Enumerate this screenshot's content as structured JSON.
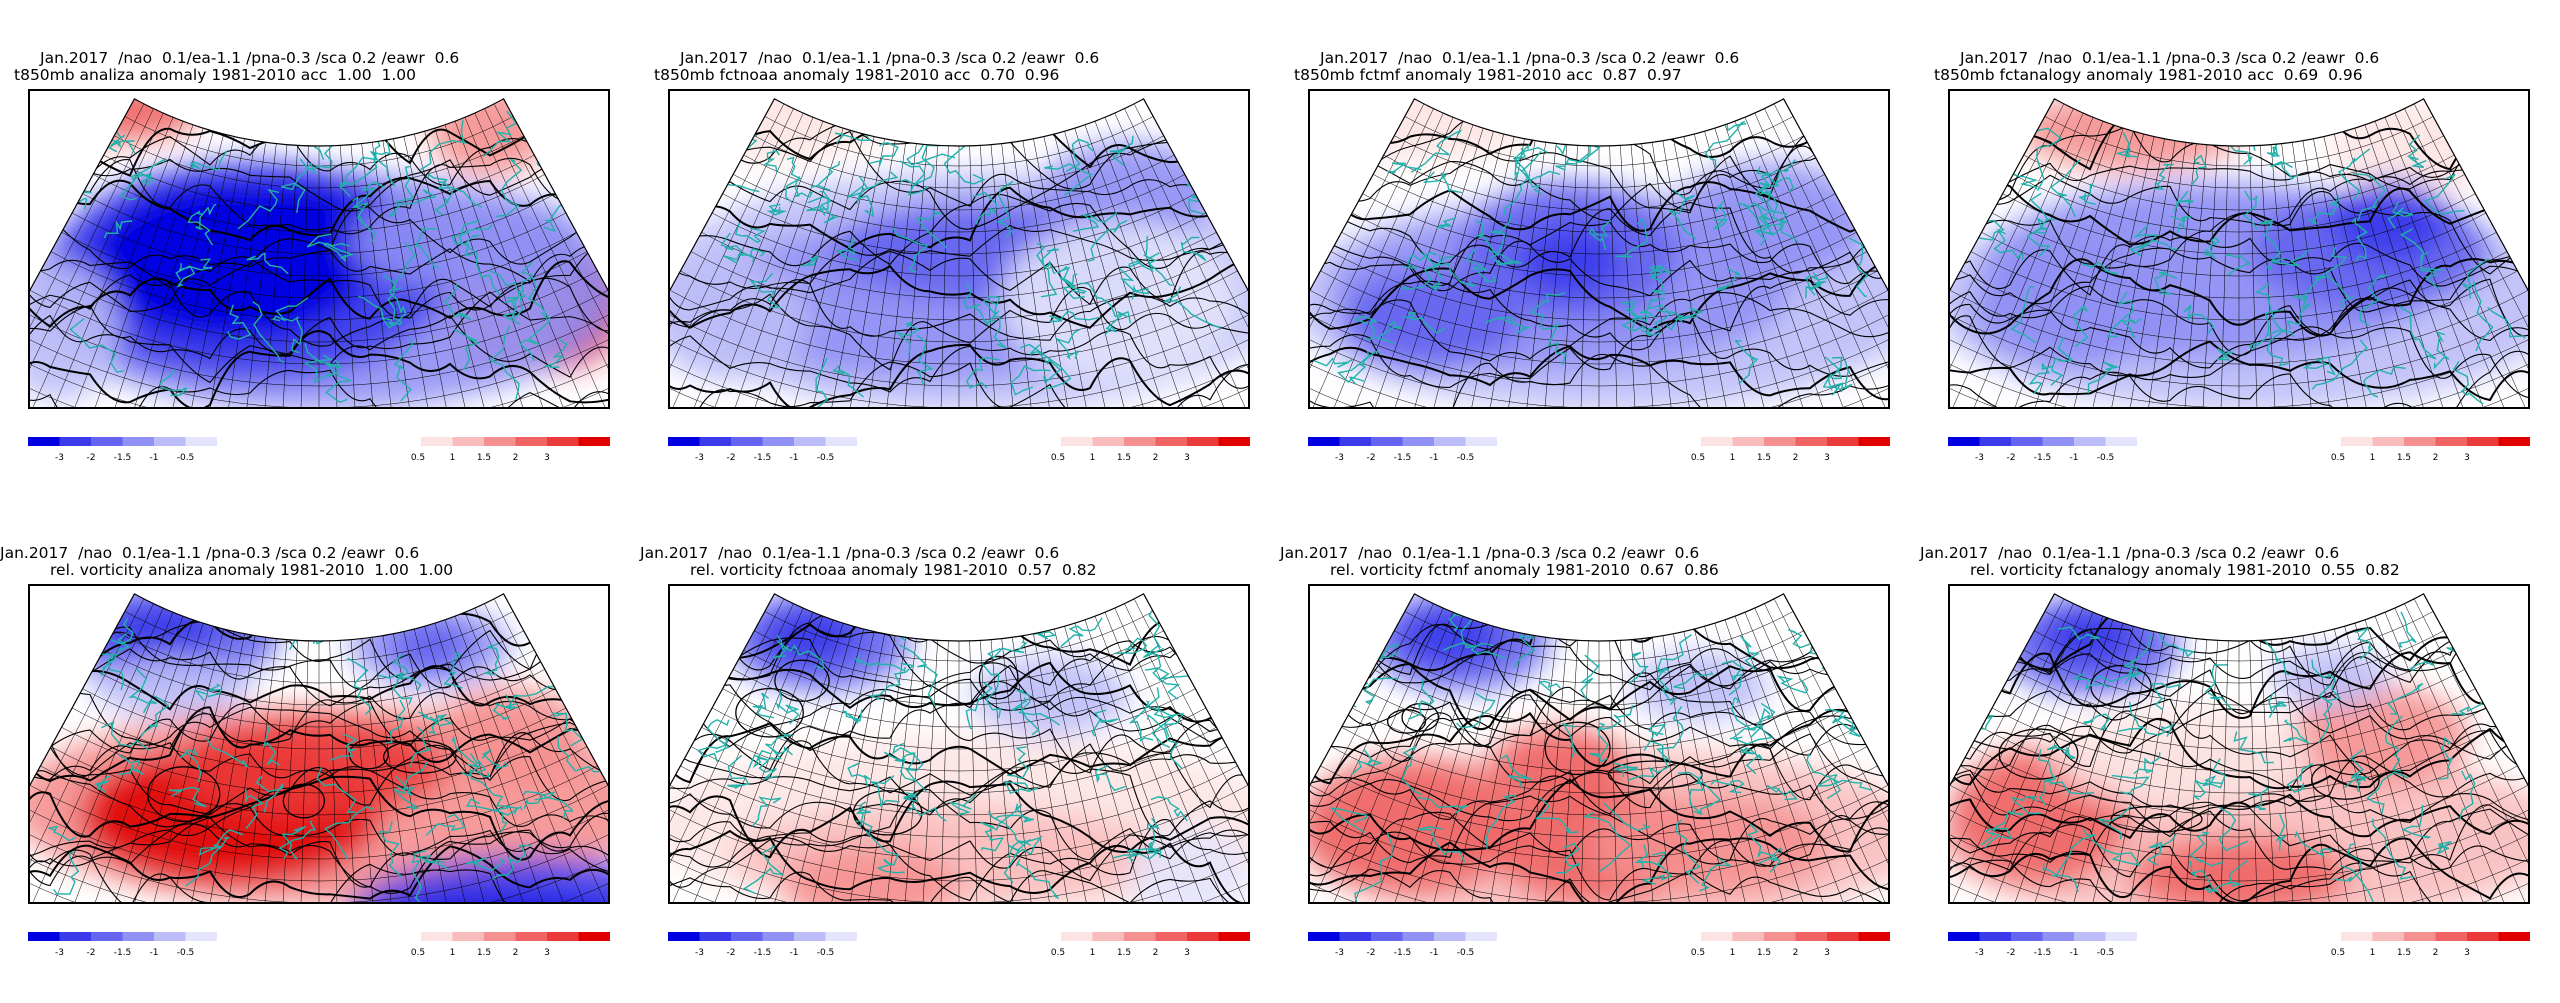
{
  "figure": {
    "panels": [
      {
        "line1": "Jan.2017  /nao  0.1/ea-1.1 /pna-0.3 /sca 0.2 /eawr  0.6",
        "line2": "t850mb analiza anomaly 1981-2010 acc  1.00  1.00",
        "variable": "t850mb",
        "source": "analiza",
        "acc": [
          1.0,
          1.0
        ]
      },
      {
        "line1": "Jan.2017  /nao  0.1/ea-1.1 /pna-0.3 /sca 0.2 /eawr  0.6",
        "line2": "t850mb fctnoaa anomaly 1981-2010 acc  0.70  0.96",
        "variable": "t850mb",
        "source": "fctnoaa",
        "acc": [
          0.7,
          0.96
        ]
      },
      {
        "line1": "Jan.2017  /nao  0.1/ea-1.1 /pna-0.3 /sca 0.2 /eawr  0.6",
        "line2": "t850mb fctmf anomaly 1981-2010 acc  0.87  0.97",
        "variable": "t850mb",
        "source": "fctmf",
        "acc": [
          0.87,
          0.97
        ]
      },
      {
        "line1": "Jan.2017  /nao  0.1/ea-1.1 /pna-0.3 /sca 0.2 /eawr  0.6",
        "line2": "t850mb fctanalogy anomaly 1981-2010 acc  0.69  0.96",
        "variable": "t850mb",
        "source": "fctanalogy",
        "acc": [
          0.69,
          0.96
        ]
      },
      {
        "line1": "Jan.2017  /nao  0.1/ea-1.1 /pna-0.3 /sca 0.2 /eawr  0.6",
        "line2": "rel. vorticity analiza anomaly 1981-2010  1.00  1.00",
        "variable": "rel. vorticity",
        "source": "analiza",
        "acc": [
          1.0,
          1.0
        ]
      },
      {
        "line1": "Jan.2017  /nao  0.1/ea-1.1 /pna-0.3 /sca 0.2 /eawr  0.6",
        "line2": "rel. vorticity fctnoaa anomaly 1981-2010  0.57  0.82",
        "variable": "rel. vorticity",
        "source": "fctnoaa",
        "acc": [
          0.57,
          0.82
        ]
      },
      {
        "line1": "Jan.2017  /nao  0.1/ea-1.1 /pna-0.3 /sca 0.2 /eawr  0.6",
        "line2": "rel. vorticity fctmf anomaly 1981-2010  0.67  0.86",
        "variable": "rel. vorticity",
        "source": "fctmf",
        "acc": [
          0.67,
          0.86
        ]
      },
      {
        "line1": "Jan.2017  /nao  0.1/ea-1.1 /pna-0.3 /sca 0.2 /eawr  0.6",
        "line2": "rel. vorticity fctanalogy anomaly 1981-2010  0.55  0.82",
        "variable": "rel. vorticity",
        "source": "fctanalogy",
        "acc": [
          0.55,
          0.82
        ]
      }
    ],
    "colorbar": {
      "labels": [
        "-3",
        "-2",
        "-1.5",
        "-1",
        "-0.5",
        "0.5",
        "1",
        "1.5",
        "2",
        "3"
      ],
      "colors_negative": [
        "#0000e0",
        "#3a3aeb",
        "#6464f0",
        "#9090f5",
        "#bcbcf8",
        "#e4e4fc"
      ],
      "colors_positive": [
        "#fde4e4",
        "#f9bcbc",
        "#f59090",
        "#f06464",
        "#eb3a3a",
        "#e00000"
      ]
    },
    "colors": {
      "coastline": "#20b2aa",
      "contour": "#000000",
      "grid": "#000000",
      "strong_negative": "#0000e0",
      "strong_positive": "#e00000"
    }
  }
}
